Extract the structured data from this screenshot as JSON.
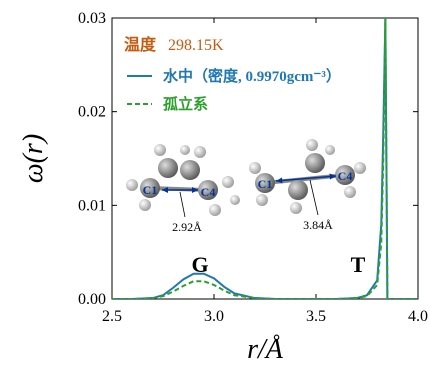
{
  "chart_data": {
    "type": "line",
    "x_label": "r/Å",
    "y_label": "ω(r)",
    "x": [
      2.5,
      2.6,
      2.7,
      2.75,
      2.8,
      2.85,
      2.9,
      2.95,
      3.0,
      3.05,
      3.1,
      3.2,
      3.3,
      3.4,
      3.5,
      3.6,
      3.7,
      3.75,
      3.8,
      3.82,
      3.83,
      3.84,
      3.85,
      3.86,
      4.0
    ],
    "series": [
      {
        "name": "水中（密度, 0.9970gcm⁻³）",
        "color": "#1f77b4",
        "dash": false,
        "values": [
          0,
          0,
          0.0001,
          0.0004,
          0.0012,
          0.0021,
          0.0027,
          0.0027,
          0.0022,
          0.0013,
          0.0006,
          0.0001,
          0,
          0,
          0,
          0,
          0.0001,
          0.0004,
          0.002,
          0.008,
          0.018,
          0.03,
          0,
          0,
          0
        ]
      },
      {
        "name": "孤立系",
        "color": "#2ca02c",
        "dash": true,
        "values": [
          0,
          0,
          0.0001,
          0.0003,
          0.0008,
          0.0014,
          0.0019,
          0.0019,
          0.0015,
          0.0009,
          0.0004,
          0.0001,
          0,
          0,
          0,
          0,
          0.0001,
          0.0003,
          0.0015,
          0.006,
          0.015,
          0.03,
          0,
          0,
          0
        ]
      }
    ],
    "xlim": [
      2.5,
      4.0
    ],
    "xticks": [
      2.5,
      {
        "value": 3,
        "label": "3.0"
      },
      3.5,
      {
        "value": 4,
        "label": "4.0"
      }
    ],
    "ylim": [
      0,
      0.03
    ],
    "yticks": [
      {
        "value": 0,
        "label": "0.00"
      },
      {
        "value": 0.01,
        "label": "0.01"
      },
      {
        "value": 0.02,
        "label": "0.02"
      },
      {
        "value": 0.03,
        "label": "0.03"
      }
    ],
    "annotations": [
      "温度",
      "298.15K",
      "G",
      "T",
      "C1",
      "C4",
      "2.92Å",
      "C1",
      "C4",
      "3.84Å"
    ]
  }
}
